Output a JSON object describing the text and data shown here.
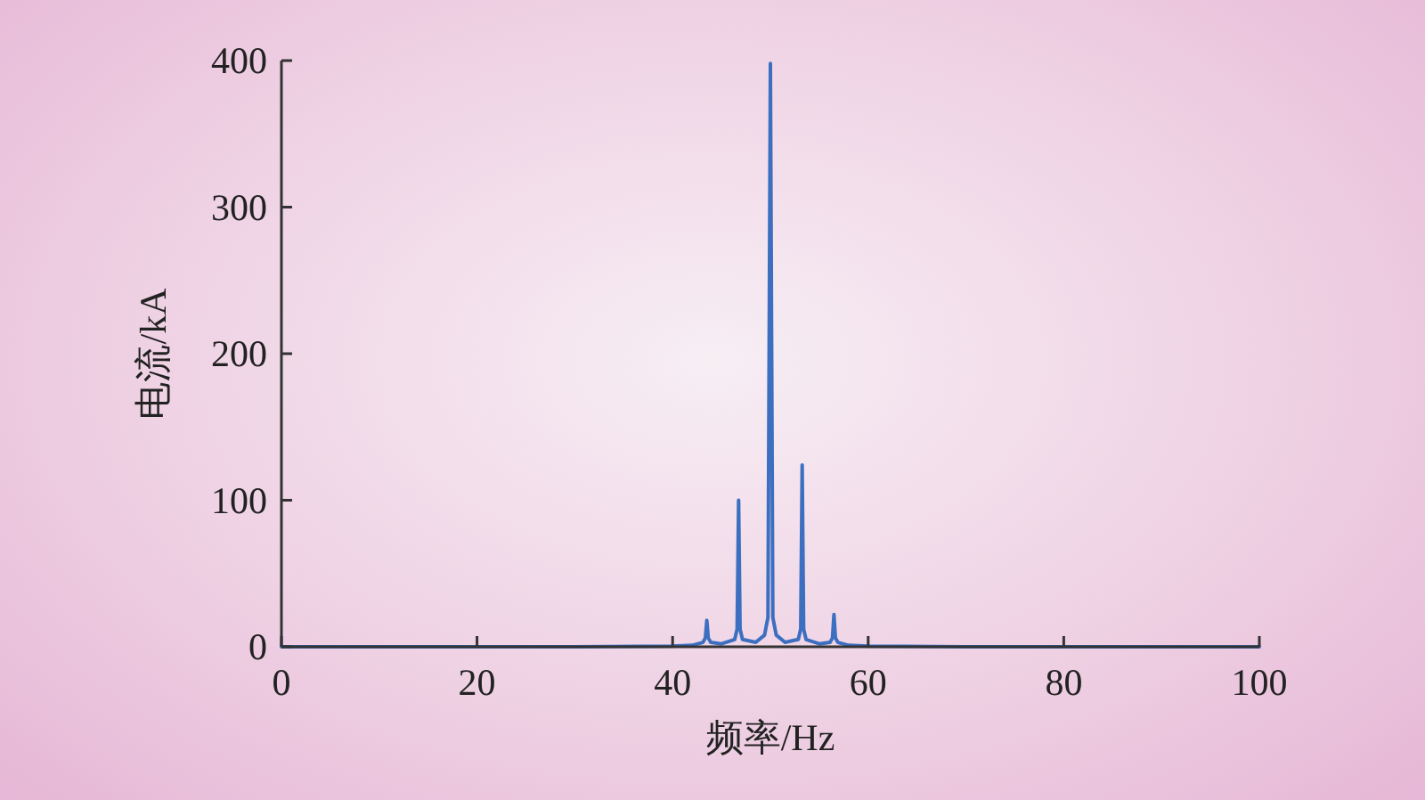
{
  "chart_data": {
    "type": "line",
    "xlabel": "频率/Hz",
    "ylabel": "电流/kA",
    "x": [
      0,
      10,
      20,
      30,
      40,
      42,
      43.1,
      43.35,
      43.5,
      43.65,
      43.9,
      45,
      46.35,
      46.6,
      46.75,
      46.9,
      47.15,
      48.5,
      49.4,
      49.75,
      50,
      50.25,
      50.6,
      51.5,
      52.85,
      53.1,
      53.25,
      53.4,
      53.65,
      55,
      56.1,
      56.35,
      56.5,
      56.65,
      56.9,
      58,
      60,
      70,
      80,
      90,
      100
    ],
    "series": [
      {
        "color": "#3d6fc0",
        "values": [
          0,
          0,
          0,
          0,
          0.5,
          1,
          3,
          6,
          18,
          6,
          3,
          2,
          5,
          12,
          100,
          12,
          5,
          3,
          8,
          20,
          398,
          20,
          8,
          3,
          5,
          12,
          124,
          12,
          5,
          2,
          3,
          6,
          22,
          6,
          3,
          1,
          0.5,
          0,
          0,
          0,
          0
        ]
      }
    ],
    "xlim": [
      0,
      100
    ],
    "ylim": [
      0,
      400
    ],
    "xticks": [
      0,
      20,
      40,
      60,
      80,
      100
    ],
    "yticks": [
      0,
      100,
      200,
      300,
      400
    ]
  }
}
